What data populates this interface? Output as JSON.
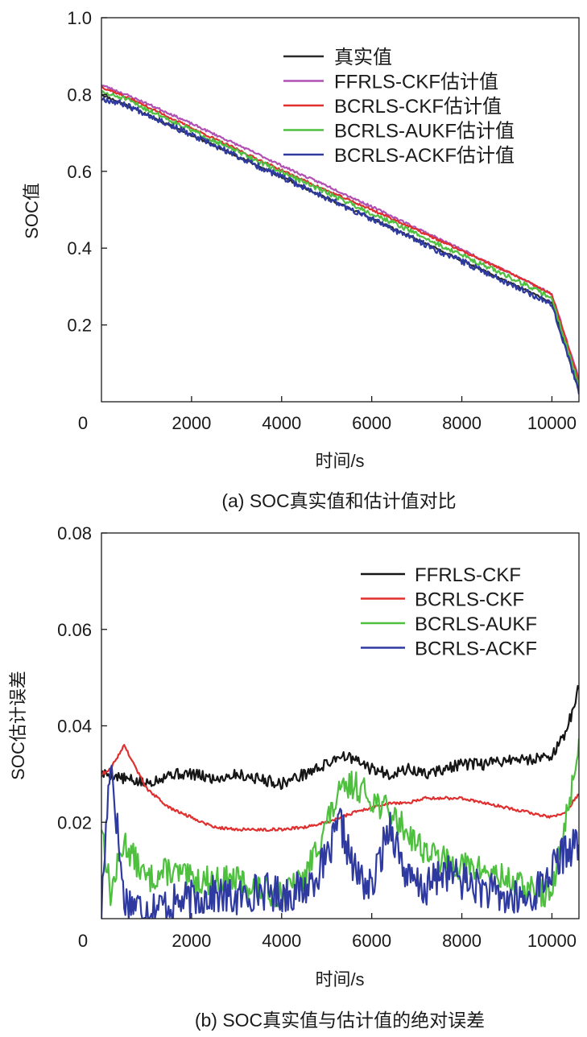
{
  "colors": {
    "truth": "#2a2a2a",
    "ffrls": "#b04fb4",
    "bcrls_ckf": "#e02f2f",
    "bcrls_aukf": "#4fbf3f",
    "bcrls_ackf": "#2f3aa0",
    "err_ffrls": "#161616",
    "axis": "#1a1a1a"
  },
  "chart_data": [
    {
      "type": "line",
      "caption": "(a) SOC真实值和估计值对比",
      "xlabel": "时间/s",
      "ylabel": "SOC值",
      "xlim": [
        0,
        10600
      ],
      "ylim": [
        0,
        1.0
      ],
      "x_ticks": [
        2000,
        4000,
        6000,
        8000,
        10000
      ],
      "x_tick_labels": [
        "2000",
        "4000",
        "6000",
        "8000",
        "10000"
      ],
      "y_ticks": [
        0.2,
        0.4,
        0.6,
        0.8,
        1.0
      ],
      "y_tick_labels": [
        "0.2",
        "0.4",
        "0.6",
        "0.8",
        "1.0"
      ],
      "origin_label": "0",
      "legend_position": "top-right",
      "x": [
        0,
        500,
        1000,
        1500,
        2000,
        2500,
        3000,
        3500,
        4000,
        4500,
        5000,
        5500,
        6000,
        6500,
        7000,
        7500,
        8000,
        8500,
        9000,
        9500,
        10000,
        10600
      ],
      "series": [
        {
          "name": "真实值",
          "color_key": "truth",
          "seed": 11,
          "noise": 0.003,
          "values": [
            0.8,
            0.775,
            0.748,
            0.721,
            0.694,
            0.667,
            0.64,
            0.613,
            0.585,
            0.558,
            0.531,
            0.504,
            0.477,
            0.45,
            0.422,
            0.395,
            0.368,
            0.341,
            0.313,
            0.286,
            0.258,
            0.028
          ]
        },
        {
          "name": "FFRLS-CKF估计值",
          "color_key": "ffrls",
          "seed": 23,
          "noise": 0.003,
          "values": [
            0.825,
            0.802,
            0.777,
            0.751,
            0.724,
            0.697,
            0.67,
            0.643,
            0.615,
            0.588,
            0.563,
            0.535,
            0.508,
            0.48,
            0.452,
            0.424,
            0.396,
            0.368,
            0.339,
            0.311,
            0.28,
            0.06
          ]
        },
        {
          "name": "BCRLS-CKF估计值",
          "color_key": "bcrls_ckf",
          "seed": 37,
          "noise": 0.003,
          "values": [
            0.82,
            0.796,
            0.769,
            0.741,
            0.713,
            0.685,
            0.658,
            0.63,
            0.603,
            0.576,
            0.55,
            0.525,
            0.5,
            0.474,
            0.447,
            0.42,
            0.393,
            0.366,
            0.339,
            0.31,
            0.279,
            0.052
          ]
        },
        {
          "name": "BCRLS-AUKF估计值",
          "color_key": "bcrls_aukf",
          "seed": 51,
          "noise": 0.006,
          "values": [
            0.805,
            0.79,
            0.762,
            0.735,
            0.707,
            0.68,
            0.652,
            0.625,
            0.598,
            0.571,
            0.545,
            0.518,
            0.49,
            0.465,
            0.437,
            0.408,
            0.382,
            0.355,
            0.328,
            0.3,
            0.27,
            0.04
          ]
        },
        {
          "name": "BCRLS-ACKF估计值",
          "color_key": "bcrls_ackf",
          "seed": 67,
          "noise": 0.008,
          "values": [
            0.79,
            0.775,
            0.75,
            0.722,
            0.694,
            0.667,
            0.64,
            0.612,
            0.585,
            0.558,
            0.531,
            0.502,
            0.475,
            0.448,
            0.42,
            0.392,
            0.366,
            0.339,
            0.311,
            0.283,
            0.255,
            0.025
          ]
        }
      ]
    },
    {
      "type": "line",
      "caption": "(b) SOC真实值与估计值的绝对误差",
      "xlabel": "时间/s",
      "ylabel": "SOC估计误差",
      "xlim": [
        0,
        10600
      ],
      "ylim": [
        0,
        0.08
      ],
      "x_ticks": [
        2000,
        4000,
        6000,
        8000,
        10000
      ],
      "x_tick_labels": [
        "2000",
        "4000",
        "6000",
        "8000",
        "10000"
      ],
      "y_ticks": [
        0.02,
        0.04,
        0.06,
        0.08
      ],
      "y_tick_labels": [
        "0.02",
        "0.04",
        "0.06",
        "0.08"
      ],
      "origin_label": "0",
      "legend_position": "top-right",
      "x": [
        0,
        200,
        500,
        1000,
        1500,
        2000,
        2500,
        3000,
        3500,
        4000,
        4500,
        5000,
        5300,
        5600,
        6000,
        6400,
        6800,
        7200,
        7600,
        8000,
        8500,
        9000,
        9500,
        10000,
        10300,
        10600
      ],
      "series": [
        {
          "name": "FFRLS-CKF",
          "color_key": "err_ffrls",
          "seed": 5,
          "noise": 0.0012,
          "values": [
            0.03,
            0.03,
            0.029,
            0.028,
            0.03,
            0.03,
            0.029,
            0.03,
            0.029,
            0.028,
            0.03,
            0.032,
            0.034,
            0.033,
            0.031,
            0.03,
            0.031,
            0.03,
            0.031,
            0.032,
            0.032,
            0.033,
            0.033,
            0.034,
            0.038,
            0.048
          ]
        },
        {
          "name": "BCRLS-CKF",
          "color_key": "bcrls_ckf",
          "seed": 9,
          "noise": 0.0003,
          "values": [
            0.03,
            0.031,
            0.036,
            0.027,
            0.023,
            0.021,
            0.019,
            0.0185,
            0.0185,
            0.0185,
            0.019,
            0.02,
            0.021,
            0.022,
            0.023,
            0.024,
            0.024,
            0.025,
            0.025,
            0.025,
            0.024,
            0.023,
            0.022,
            0.021,
            0.022,
            0.026
          ]
        },
        {
          "name": "BCRLS-AUKF",
          "color_key": "bcrls_aukf",
          "seed": 13,
          "noise": 0.003,
          "values": [
            0.02,
            0.005,
            0.016,
            0.008,
            0.01,
            0.008,
            0.008,
            0.008,
            0.006,
            0.005,
            0.008,
            0.02,
            0.026,
            0.028,
            0.025,
            0.022,
            0.018,
            0.014,
            0.012,
            0.011,
            0.01,
            0.008,
            0.006,
            0.005,
            0.02,
            0.036
          ]
        },
        {
          "name": "BCRLS-ACKF",
          "color_key": "bcrls_ackf",
          "seed": 17,
          "noise": 0.004,
          "values": [
            0.002,
            0.034,
            0.004,
            0.002,
            0.003,
            0.004,
            0.005,
            0.004,
            0.006,
            0.005,
            0.006,
            0.012,
            0.02,
            0.01,
            0.006,
            0.02,
            0.008,
            0.006,
            0.01,
            0.008,
            0.006,
            0.004,
            0.004,
            0.01,
            0.014,
            0.016
          ]
        }
      ]
    }
  ]
}
